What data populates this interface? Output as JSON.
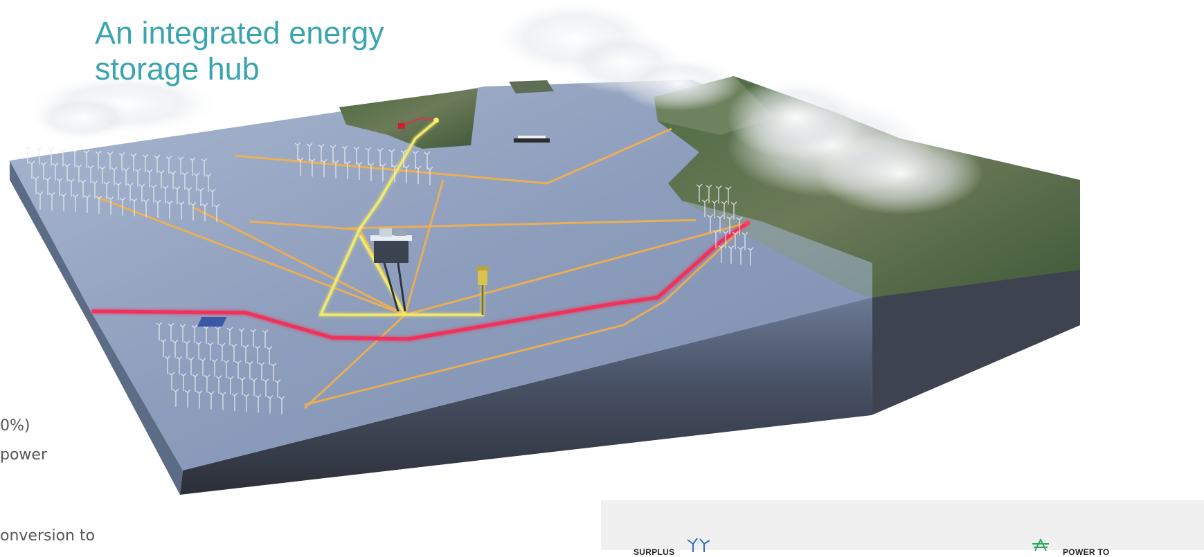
{
  "title": "An integrated energy storage hub",
  "left_text": {
    "line1": "0%)",
    "line2": "power",
    "line3": "onversion to"
  },
  "legend_panel": {
    "left_label": "SURPLUS",
    "right_label": "POWER TO",
    "left_icon": "wind-turbine-icon",
    "right_icon": "power-pylon-icon"
  },
  "colors": {
    "title": "#3aa5b0",
    "sea": "#8fa0bd",
    "cable_orange": "#f5b04a",
    "cable_yellow": "#f1ea6a",
    "cable_red": "#f0315a",
    "panel_bg": "#f0f0f0"
  }
}
